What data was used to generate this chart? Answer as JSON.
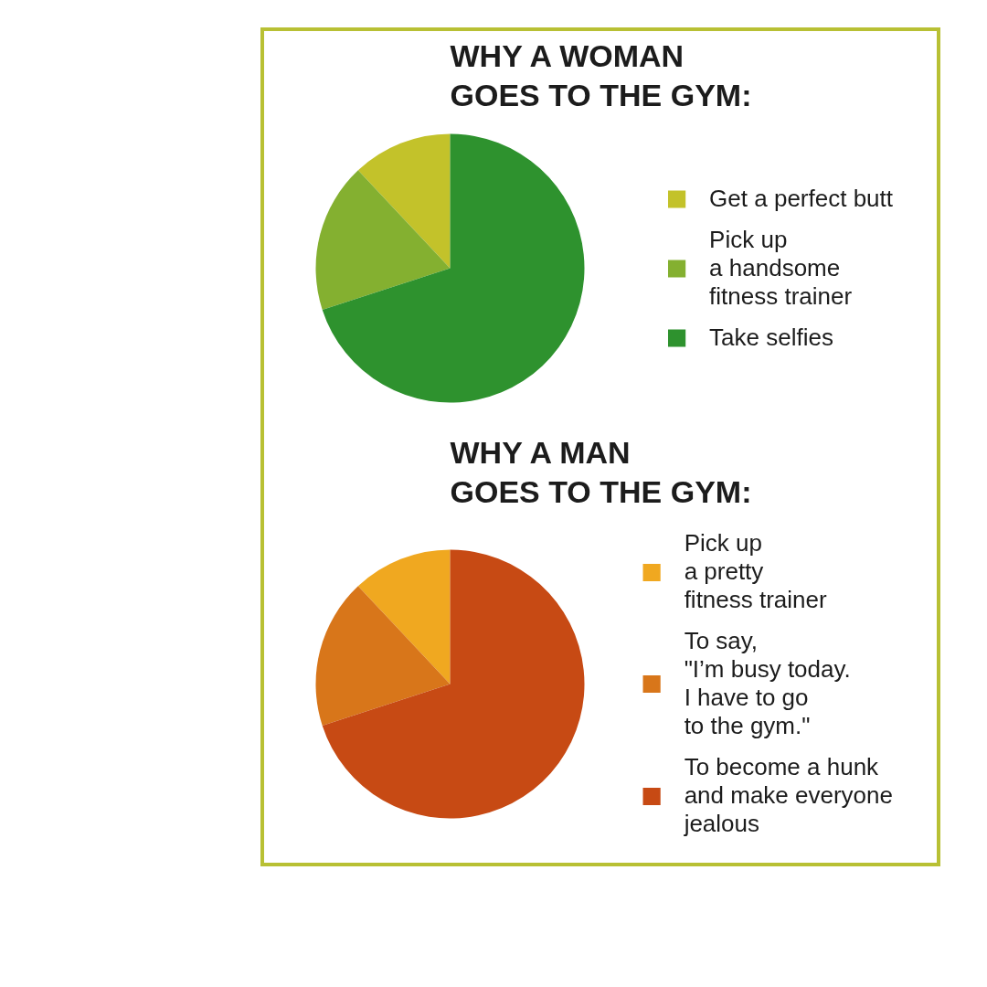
{
  "chart_data": [
    {
      "type": "pie",
      "title": "WHY A WOMAN\nGOES TO THE GYM:",
      "categories": [
        "Get a perfect butt",
        "Pick up\na handsome\nfitness trainer",
        "Take selfies"
      ],
      "values": [
        12,
        18,
        70
      ],
      "colors": [
        "#c3c22a",
        "#84b030",
        "#2e922e"
      ],
      "legend": "right"
    },
    {
      "type": "pie",
      "title": "WHY A MAN\nGOES TO THE GYM:",
      "categories": [
        "Pick up\na pretty\nfitness trainer",
        "To say,\n\"I’m busy today.\nI have to go\nto the gym.\"",
        "To become a hunk\nand make everyone\njealous"
      ],
      "values": [
        12,
        18,
        70
      ],
      "colors": [
        "#f0a820",
        "#d8761a",
        "#c74a14"
      ],
      "legend": "right"
    }
  ]
}
